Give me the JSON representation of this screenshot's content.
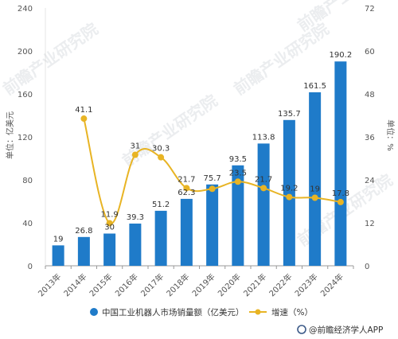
{
  "chart_data": {
    "type": "bar",
    "categories": [
      "2013年",
      "2014年",
      "2015年",
      "2016年",
      "2017年",
      "2018年",
      "2019年",
      "2020年",
      "2021年",
      "2022年",
      "2023年",
      "2024年"
    ],
    "series": [
      {
        "name": "中国工业机器人市场销量额（亿美元）",
        "type": "bar",
        "axis": "left",
        "color": "#1f7bc9",
        "values": [
          19,
          26.8,
          30,
          39.3,
          51.2,
          62.3,
          75.7,
          93.5,
          113.8,
          135.7,
          161.5,
          190.2
        ]
      },
      {
        "name": "增速（%）",
        "type": "line",
        "axis": "right",
        "color": "#e8b424",
        "values": [
          null,
          41.1,
          11.9,
          31,
          30.3,
          21.7,
          21.5,
          23.5,
          21.7,
          19.2,
          19,
          17.8
        ],
        "labels": [
          "",
          "41.1",
          "11.9",
          "31",
          "30.3",
          "21.7",
          "",
          "23.5",
          "21.7",
          "19.2",
          "19",
          "17.8"
        ]
      }
    ],
    "ylabel_left": "单位：亿美元",
    "ylabel_right": "单位：%",
    "ylim_left": [
      0,
      240
    ],
    "ylim_right": [
      0,
      72
    ],
    "yticks_left": [
      0,
      40,
      80,
      120,
      160,
      200,
      240
    ],
    "yticks_right": [
      0,
      12,
      24,
      36,
      48,
      60,
      72
    ],
    "grid": false,
    "legend": "bottom"
  },
  "legend": {
    "bar_label": "中国工业机器人市场销量额（亿美元）",
    "line_label": "增速（%）"
  },
  "credit": "@前瞻经济学人APP",
  "watermark": "前瞻产业研究院"
}
